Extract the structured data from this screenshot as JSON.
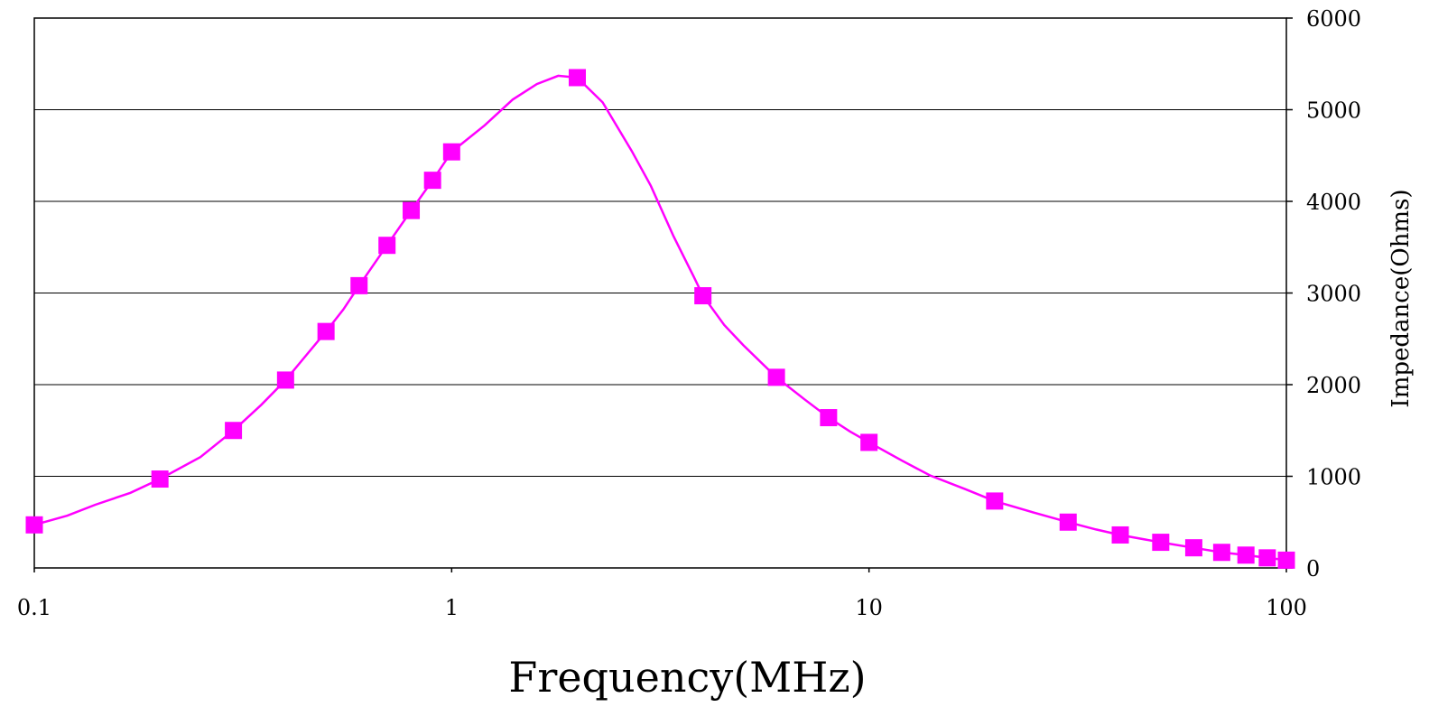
{
  "chart_data": {
    "type": "line",
    "title": "",
    "xlabel": "Frequency(MHz)",
    "ylabel": "Impedance(Ohms)",
    "x_scale": "log",
    "xlim": [
      0.1,
      100
    ],
    "ylim": [
      0,
      6000
    ],
    "x_ticks": [
      0.1,
      1,
      10,
      100
    ],
    "x_tick_labels": [
      "0.1",
      "1",
      "10",
      "100"
    ],
    "y_ticks": [
      0,
      1000,
      2000,
      3000,
      4000,
      5000,
      6000
    ],
    "y_tick_labels": [
      "0",
      "1000",
      "2000",
      "3000",
      "4000",
      "5000",
      "6000"
    ],
    "y_axis_side": "right",
    "grid": "horizontal",
    "legend": "none",
    "color": "#FF00FF",
    "series": [
      {
        "marker": "square",
        "points": [
          {
            "x": 0.1,
            "y": 470
          },
          {
            "x": 0.2,
            "y": 970
          },
          {
            "x": 0.3,
            "y": 1500
          },
          {
            "x": 0.4,
            "y": 2050
          },
          {
            "x": 0.5,
            "y": 2580
          },
          {
            "x": 0.6,
            "y": 3080
          },
          {
            "x": 0.7,
            "y": 3520
          },
          {
            "x": 0.8,
            "y": 3900
          },
          {
            "x": 0.9,
            "y": 4230
          },
          {
            "x": 1,
            "y": 4540
          },
          {
            "x": 2,
            "y": 5350
          },
          {
            "x": 4,
            "y": 2970
          },
          {
            "x": 6,
            "y": 2080
          },
          {
            "x": 8,
            "y": 1640
          },
          {
            "x": 10,
            "y": 1370
          },
          {
            "x": 20,
            "y": 730
          },
          {
            "x": 30,
            "y": 500
          },
          {
            "x": 40,
            "y": 360
          },
          {
            "x": 50,
            "y": 280
          },
          {
            "x": 60,
            "y": 220
          },
          {
            "x": 70,
            "y": 170
          },
          {
            "x": 80,
            "y": 140
          },
          {
            "x": 90,
            "y": 110
          },
          {
            "x": 100,
            "y": 85
          }
        ],
        "curve": [
          [
            0.1,
            470
          ],
          [
            0.12,
            570
          ],
          [
            0.14,
            690
          ],
          [
            0.17,
            820
          ],
          [
            0.2,
            970
          ],
          [
            0.25,
            1210
          ],
          [
            0.3,
            1500
          ],
          [
            0.35,
            1780
          ],
          [
            0.4,
            2050
          ],
          [
            0.45,
            2330
          ],
          [
            0.5,
            2580
          ],
          [
            0.55,
            2820
          ],
          [
            0.6,
            3080
          ],
          [
            0.7,
            3520
          ],
          [
            0.8,
            3900
          ],
          [
            0.9,
            4230
          ],
          [
            1,
            4540
          ],
          [
            1.2,
            4830
          ],
          [
            1.4,
            5110
          ],
          [
            1.6,
            5280
          ],
          [
            1.8,
            5370
          ],
          [
            2,
            5350
          ],
          [
            2.3,
            5080
          ],
          [
            2.7,
            4550
          ],
          [
            3,
            4170
          ],
          [
            3.4,
            3620
          ],
          [
            3.8,
            3180
          ],
          [
            4,
            2970
          ],
          [
            4.5,
            2650
          ],
          [
            5,
            2430
          ],
          [
            6,
            2080
          ],
          [
            7,
            1840
          ],
          [
            8,
            1640
          ],
          [
            9,
            1490
          ],
          [
            10,
            1370
          ],
          [
            12,
            1170
          ],
          [
            14,
            1010
          ],
          [
            17,
            860
          ],
          [
            20,
            730
          ],
          [
            25,
            600
          ],
          [
            30,
            500
          ],
          [
            35,
            420
          ],
          [
            40,
            360
          ],
          [
            50,
            280
          ],
          [
            60,
            220
          ],
          [
            70,
            170
          ],
          [
            80,
            140
          ],
          [
            90,
            110
          ],
          [
            100,
            85
          ]
        ]
      }
    ]
  }
}
